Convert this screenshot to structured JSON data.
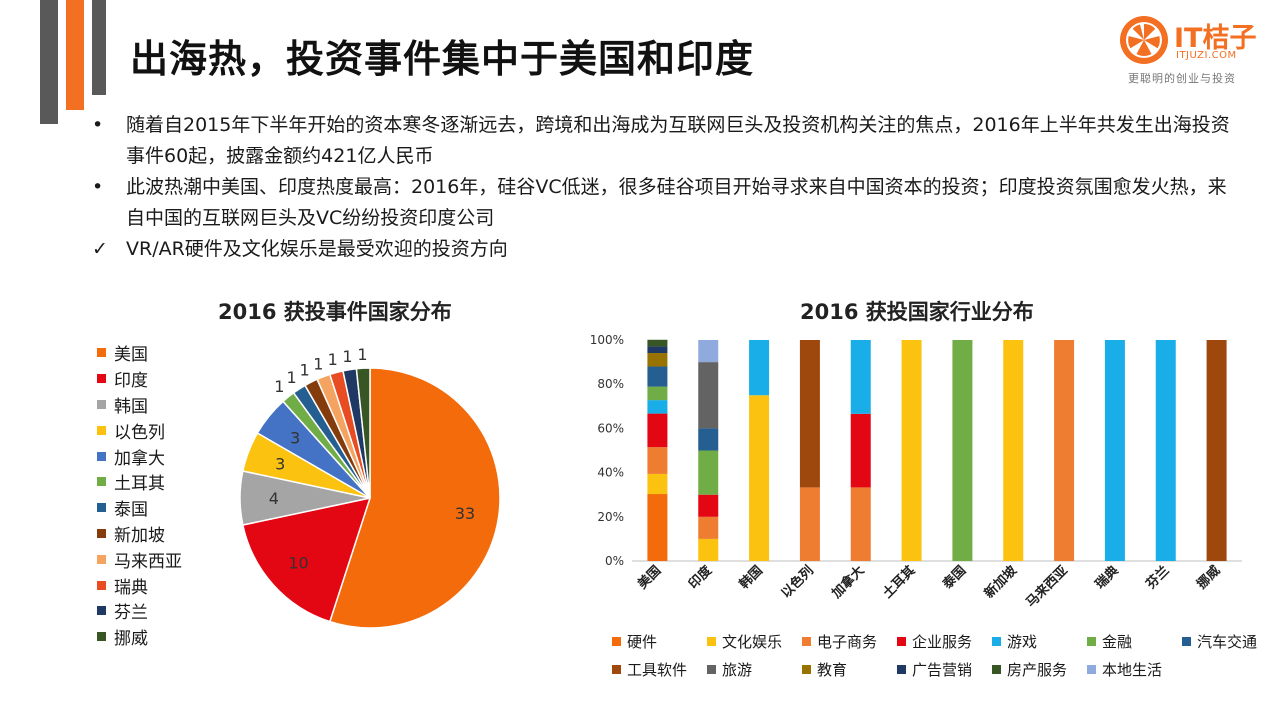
{
  "title": "出海热，投资事件集中于美国和印度",
  "logo": {
    "main": "IT桔子",
    "sub": "ITJUZI.COM",
    "slogan": "更聪明的创业与投资"
  },
  "bullets": [
    {
      "mark": "•",
      "text": "随着自2015年下半年开始的资本寒冬逐渐远去，跨境和出海成为互联网巨头及投资机构关注的焦点，2016年上半年共发生出海投资事件60起，披露金额约421亿人民币"
    },
    {
      "mark": "•",
      "text": "此波热潮中美国、印度热度最高：2016年，硅谷VC低迷，很多硅谷项目开始寻求来自中国资本的投资；印度投资氛围愈发火热，来自中国的互联网巨头及VC纷纷投资印度公司"
    },
    {
      "mark": "✓",
      "text": "VR/AR硬件及文化娱乐是最受欢迎的投资方向"
    }
  ],
  "colors": {
    "accent": "#f36f21",
    "deco_gray": "#595959"
  },
  "chart_data": [
    {
      "type": "pie",
      "title": "2016 获投事件国家分布",
      "categories": [
        "美国",
        "印度",
        "韩国",
        "以色列",
        "加拿大",
        "土耳其",
        "泰国",
        "新加坡",
        "马来西亚",
        "瑞典",
        "芬兰",
        "挪威"
      ],
      "values": [
        33,
        10,
        4,
        3,
        3,
        1,
        1,
        1,
        1,
        1,
        1,
        1
      ],
      "colors": [
        "#f36b0a",
        "#e30613",
        "#a5a5a5",
        "#fbc30f",
        "#4472c4",
        "#70ad47",
        "#255e91",
        "#843c0c",
        "#f4a460",
        "#e84c22",
        "#203864",
        "#375623"
      ],
      "legend_position": "left"
    },
    {
      "type": "bar",
      "stacked": true,
      "percent": true,
      "title": "2016 获投国家行业分布",
      "categories": [
        "美国",
        "印度",
        "韩国",
        "以色列",
        "加拿大",
        "土耳其",
        "泰国",
        "新加坡",
        "马来西亚",
        "瑞典",
        "芬兰",
        "挪威"
      ],
      "ylim": [
        0,
        100
      ],
      "yticks": [
        "0%",
        "20%",
        "40%",
        "60%",
        "80%",
        "100%"
      ],
      "series": [
        {
          "name": "硬件",
          "color": "#f36b0a",
          "values": [
            30.3,
            0,
            0,
            0,
            0,
            0,
            0,
            0,
            0,
            0,
            0,
            0
          ]
        },
        {
          "name": "文化娱乐",
          "color": "#fbc30f",
          "values": [
            9.1,
            10,
            75,
            0,
            0,
            100,
            0,
            100,
            0,
            0,
            0,
            0
          ]
        },
        {
          "name": "电子商务",
          "color": "#ee7d31",
          "values": [
            12.1,
            10,
            0,
            33.3,
            33.3,
            0,
            0,
            0,
            100,
            0,
            0,
            0
          ]
        },
        {
          "name": "企业服务",
          "color": "#e30613",
          "values": [
            15.2,
            10,
            0,
            0,
            33.3,
            0,
            0,
            0,
            0,
            0,
            0,
            0
          ]
        },
        {
          "name": "游戏",
          "color": "#19aee8",
          "values": [
            6.1,
            0,
            25,
            0,
            33.4,
            0,
            0,
            0,
            0,
            100,
            100,
            0
          ]
        },
        {
          "name": "金融",
          "color": "#70ad47",
          "values": [
            6.1,
            20,
            0,
            0,
            0,
            0,
            100,
            0,
            0,
            0,
            0,
            0
          ]
        },
        {
          "name": "汽车交通",
          "color": "#255e91",
          "values": [
            9.1,
            10,
            0,
            0,
            0,
            0,
            0,
            0,
            0,
            0,
            0,
            0
          ]
        },
        {
          "name": "工具软件",
          "color": "#9e480e",
          "values": [
            0,
            0,
            0,
            66.7,
            0,
            0,
            0,
            0,
            0,
            0,
            0,
            100
          ]
        },
        {
          "name": "旅游",
          "color": "#636363",
          "values": [
            0,
            30,
            0,
            0,
            0,
            0,
            0,
            0,
            0,
            0,
            0,
            0
          ]
        },
        {
          "name": "教育",
          "color": "#997300",
          "values": [
            6.1,
            0,
            0,
            0,
            0,
            0,
            0,
            0,
            0,
            0,
            0,
            0
          ]
        },
        {
          "name": "广告营销",
          "color": "#203864",
          "values": [
            3.0,
            0,
            0,
            0,
            0,
            0,
            0,
            0,
            0,
            0,
            0,
            0
          ]
        },
        {
          "name": "房产服务",
          "color": "#375623",
          "values": [
            3.0,
            0,
            0,
            0,
            0,
            0,
            0,
            0,
            0,
            0,
            0,
            0
          ]
        },
        {
          "name": "本地生活",
          "color": "#8faadc",
          "values": [
            0,
            10,
            0,
            0,
            0,
            0,
            0,
            0,
            0,
            0,
            0,
            0
          ]
        }
      ],
      "legend_position": "bottom"
    }
  ]
}
